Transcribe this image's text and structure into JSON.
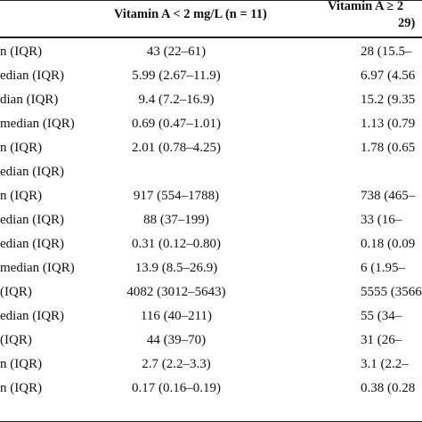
{
  "header": {
    "col1": "Vitamin A < 2 mg/L (n = 11)",
    "col2_line1": "Vitamin A ≥ 2",
    "col2_line2": "29)"
  },
  "rows": [
    {
      "label": "n (IQR)",
      "v1": "43 (22–61)",
      "v2": "28 (15.5–"
    },
    {
      "label": "edian (IQR)",
      "v1": "5.99 (2.67–11.9)",
      "v2": "6.97 (4.56"
    },
    {
      "label": "dian (IQR)",
      "v1": "9.4 (7.2–16.9)",
      "v2": "15.2 (9.35"
    },
    {
      "label": " median (IQR)",
      "v1": "0.69 (0.47–1.01)",
      "v2": "1.13 (0.79"
    },
    {
      "label": "n (IQR)",
      "v1": "2.01 (0.78–4.25)",
      "v2": "1.78 (0.65"
    },
    {
      "label": "edian (IQR)",
      "v1": "",
      "v2": ""
    },
    {
      "label": "n (IQR)",
      "v1": "917 (554–1788)",
      "v2": "738 (465–"
    },
    {
      "label": "edian (IQR)",
      "v1": "88 (37–199)",
      "v2": "33 (16–"
    },
    {
      "label": "edian (IQR)",
      "v1": "0.31 (0.12–0.80)",
      "v2": "0.18 (0.09"
    },
    {
      "label": " median (IQR)",
      "v1": "13.9 (8.5–26.9)",
      "v2": "6 (1.95–"
    },
    {
      "label": "(IQR)",
      "v1": "4082 (3012–5643)",
      "v2": "5555 (3566"
    },
    {
      "label": "edian (IQR)",
      "v1": "116 (40–211)",
      "v2": "55 (34–"
    },
    {
      "label": "(IQR)",
      "v1": "44 (39–70)",
      "v2": "31 (26–"
    },
    {
      "label": "n (IQR)",
      "v1": "2.7 (2.2–3.3)",
      "v2": "3.1 (2.2–"
    },
    {
      "label": "n (IQR)",
      "v1": "0.17 (0.16–0.19)",
      "v2": "0.38 (0.28"
    }
  ]
}
